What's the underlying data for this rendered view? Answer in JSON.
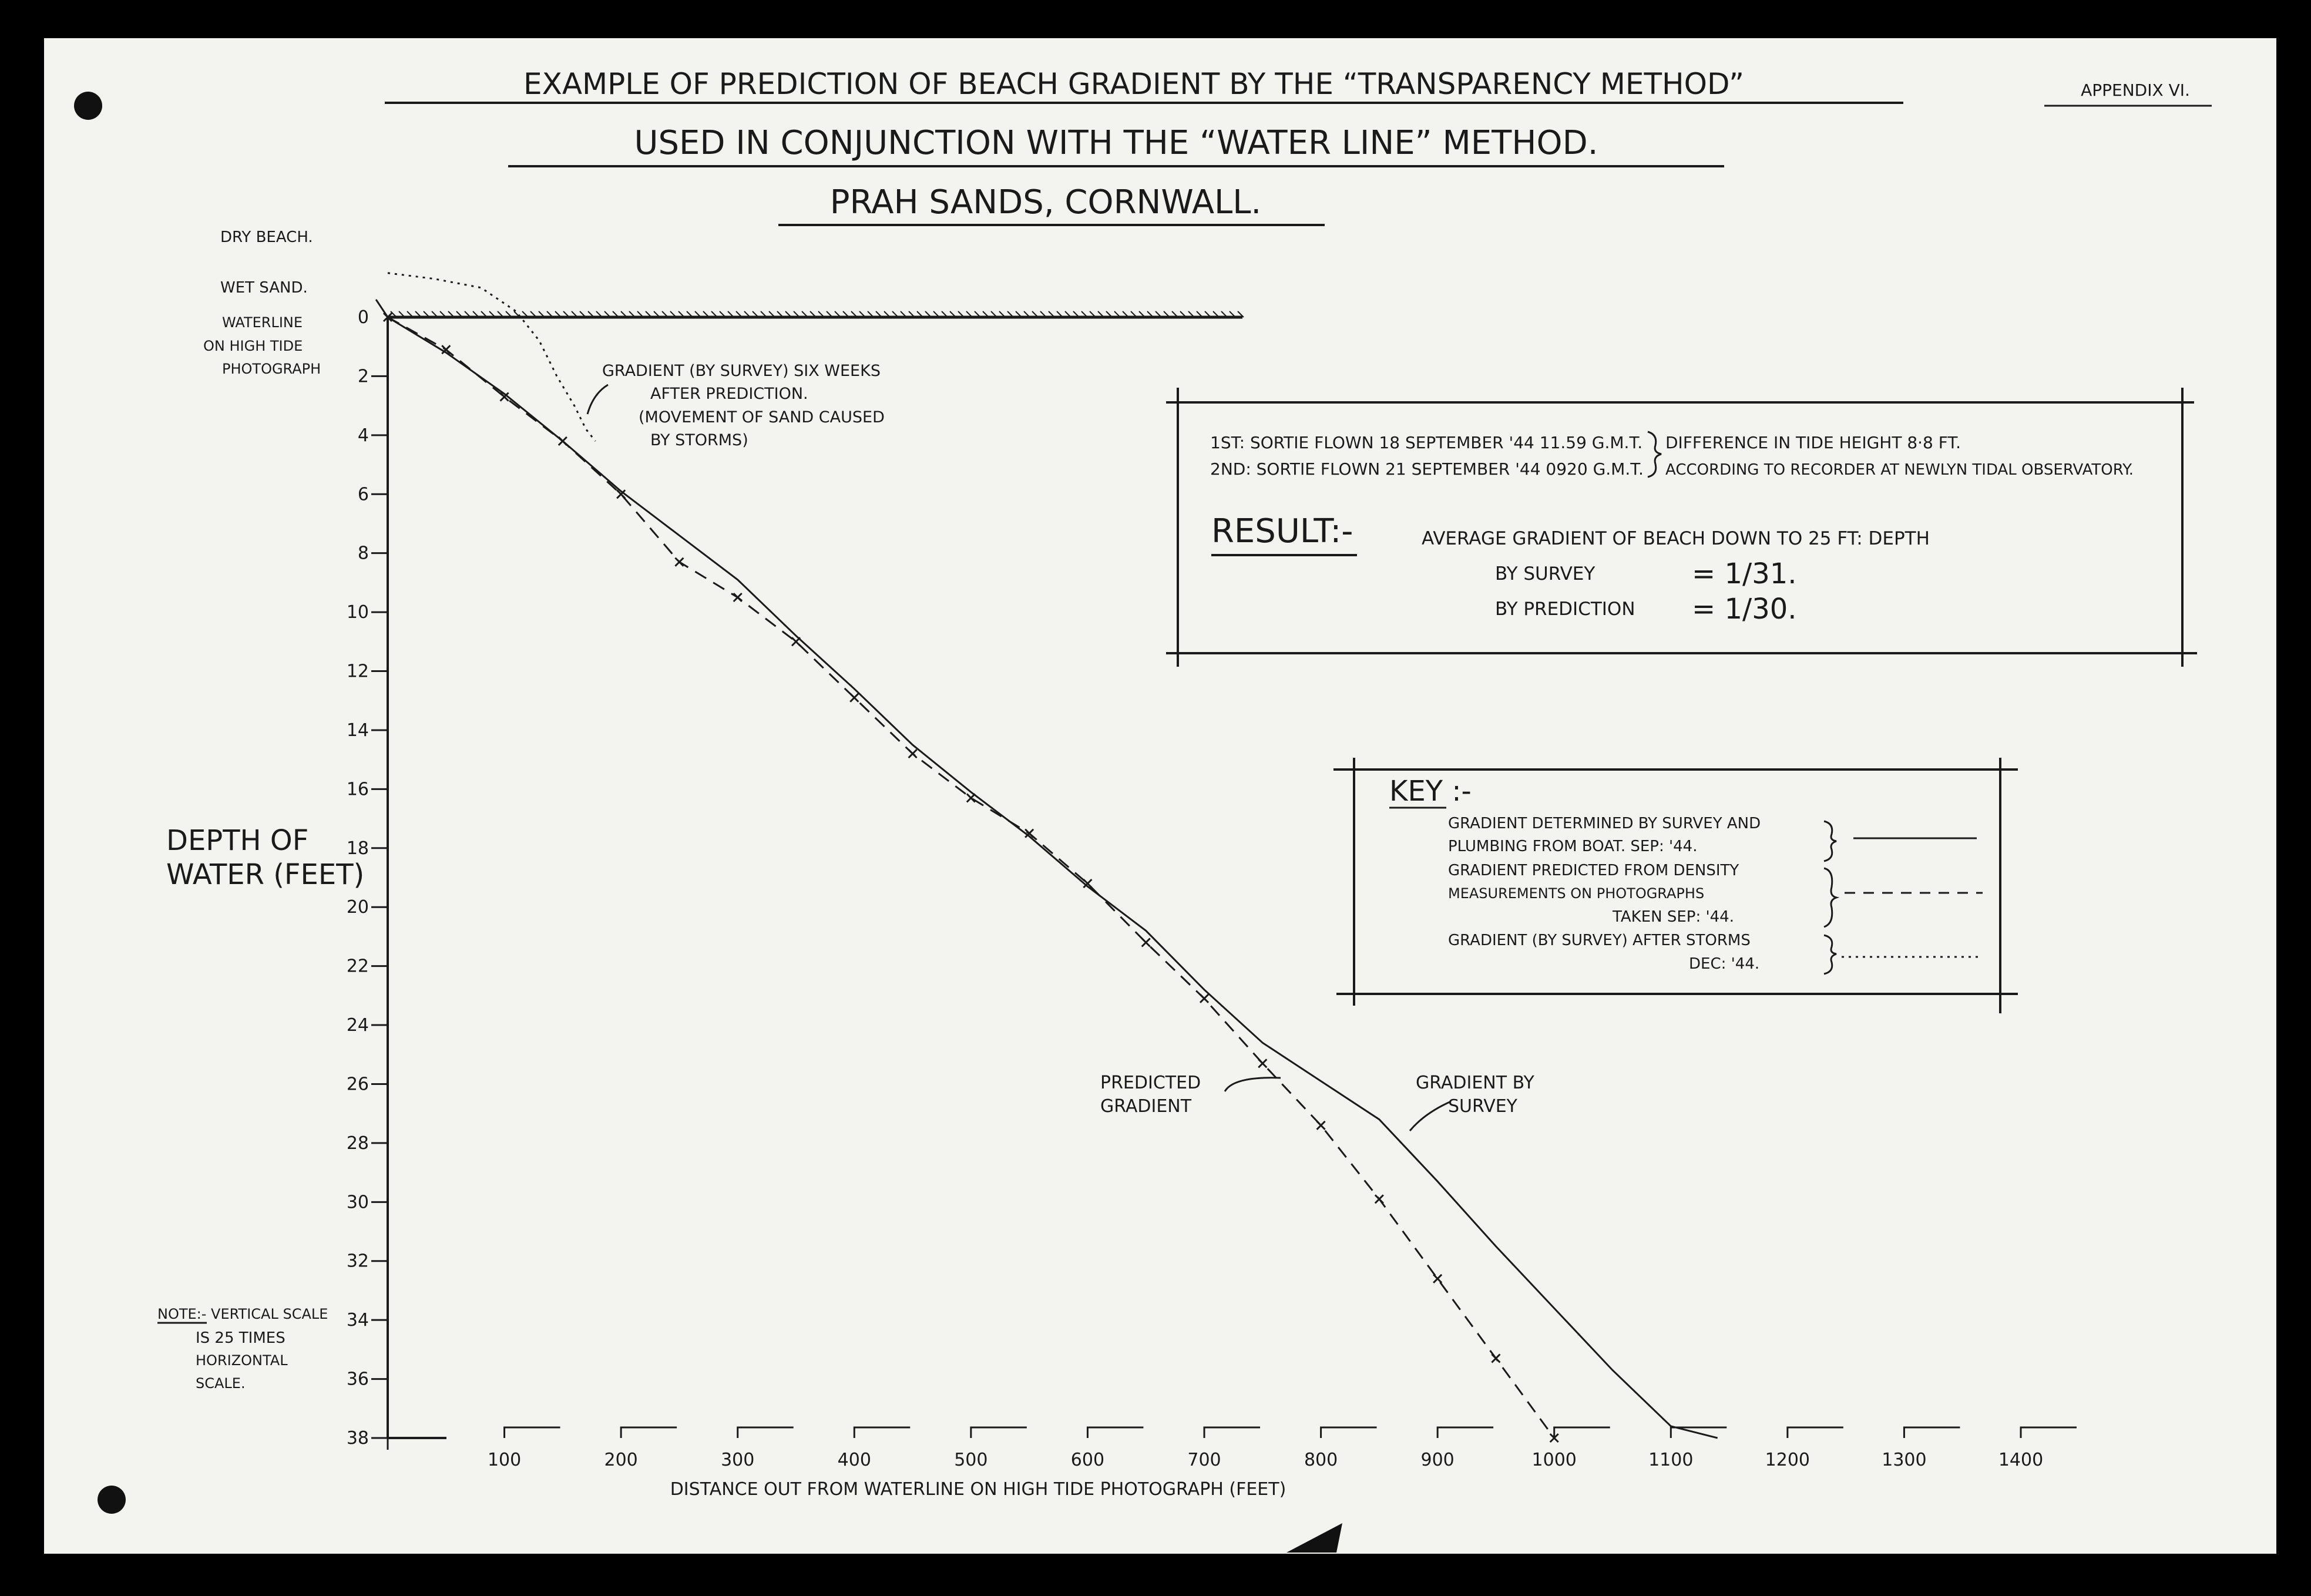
{
  "page": {
    "title_line1": "EXAMPLE OF PREDICTION OF BEACH GRADIENT BY THE “TRANSPARENCY METHOD”",
    "title_line2": "USED IN CONJUNCTION WITH THE “WATER LINE” METHOD.",
    "title_line3": "PRAH SANDS, CORNWALL.",
    "appendix": "APPENDIX VI."
  },
  "labels": {
    "dry_beach": "DRY BEACH.",
    "wet_sand": "WET SAND.",
    "waterline_1": "WATERLINE",
    "waterline_2": "ON HIGH TIDE",
    "waterline_3": "PHOTOGRAPH",
    "storm_note_1": "GRADIENT (BY SURVEY) SIX WEEKS",
    "storm_note_2": "AFTER PREDICTION.",
    "storm_note_3": "(MOVEMENT OF SAND CAUSED",
    "storm_note_4": "BY STORMS)",
    "predicted_1": "PREDICTED",
    "predicted_2": "GRADIENT",
    "survey_1": "GRADIENT BY",
    "survey_2": "SURVEY",
    "note_1": "NOTE:- VERTICAL SCALE",
    "note_2": "IS 25 TIMES",
    "note_3": "HORIZONTAL",
    "note_4": "SCALE."
  },
  "info_box": {
    "sortie1": "1ST: SORTIE FLOWN 18 SEPTEMBER '44 11.59 G.M.T.",
    "sortie2": "2ND: SORTIE FLOWN 21 SEPTEMBER '44 0920 G.M.T.",
    "tide1": "DIFFERENCE IN TIDE HEIGHT 8·8 FT.",
    "tide2": "ACCORDING TO RECORDER AT NEWLYN TIDAL OBSERVATORY.",
    "result_label": "RESULT:-",
    "result_text": "AVERAGE GRADIENT OF BEACH DOWN TO 25 FT: DEPTH",
    "by_survey": "BY SURVEY",
    "by_survey_value": "= 1/31.",
    "by_prediction": "BY PREDICTION",
    "by_prediction_value": "= 1/30."
  },
  "key_box": {
    "title": "KEY :-",
    "survey_1": "GRADIENT DETERMINED BY SURVEY AND",
    "survey_2": "PLUMBING FROM BOAT. SEP: '44.",
    "predicted_1": "GRADIENT PREDICTED FROM DENSITY",
    "predicted_2": "MEASUREMENTS ON PHOTOGRAPHS",
    "predicted_3": "TAKEN SEP: '44.",
    "storms_1": "GRADIENT (BY SURVEY) AFTER STORMS",
    "storms_2": "DEC: '44."
  },
  "chart_data": {
    "type": "line",
    "title": "EXAMPLE OF PREDICTION OF BEACH GRADIENT BY THE “TRANSPARENCY METHOD”",
    "xlabel": "DISTANCE OUT FROM WATERLINE ON HIGH TIDE PHOTOGRAPH (FEET)",
    "ylabel_1": "DEPTH OF",
    "ylabel_2": "WATER (FEET)",
    "xlim": [
      0,
      1400
    ],
    "ylim": [
      0,
      38
    ],
    "y_inverted": true,
    "x_ticks": [
      100,
      200,
      300,
      400,
      500,
      600,
      700,
      800,
      900,
      1000,
      1100,
      1200,
      1300,
      1400
    ],
    "y_ticks": [
      0,
      2,
      4,
      6,
      8,
      10,
      12,
      14,
      16,
      18,
      20,
      22,
      24,
      26,
      28,
      30,
      32,
      34,
      36,
      38
    ],
    "series": [
      {
        "name": "GRADIENT DETERMINED BY SURVEY AND PLUMBING FROM BOAT. SEP: '44.",
        "style": "solid",
        "x": [
          -10,
          0,
          50,
          100,
          150,
          200,
          250,
          300,
          350,
          400,
          450,
          500,
          550,
          600,
          650,
          700,
          750,
          800,
          850,
          900,
          950,
          1000,
          1050,
          1100,
          1140
        ],
        "y": [
          -0.6,
          0,
          1.2,
          2.6,
          4.2,
          5.9,
          7.4,
          8.9,
          10.8,
          12.6,
          14.5,
          16.1,
          17.6,
          19.3,
          20.8,
          22.8,
          24.6,
          25.9,
          27.2,
          29.3,
          31.5,
          33.6,
          35.7,
          37.6,
          38
        ]
      },
      {
        "name": "GRADIENT PREDICTED FROM DENSITY MEASUREMENTS ON PHOTOGRAPHS TAKEN SEP: '44.",
        "style": "dashed",
        "x": [
          0,
          50,
          100,
          150,
          200,
          250,
          300,
          350,
          400,
          450,
          500,
          550,
          600,
          650,
          700,
          750,
          800,
          850,
          900,
          950,
          1000
        ],
        "y": [
          0,
          1.1,
          2.7,
          4.2,
          6.0,
          8.3,
          9.5,
          11.0,
          12.9,
          14.8,
          16.3,
          17.5,
          19.2,
          21.2,
          23.1,
          25.3,
          27.4,
          29.9,
          32.6,
          35.3,
          38.0
        ]
      },
      {
        "name": "GRADIENT (BY SURVEY) AFTER STORMS DEC: '44.",
        "style": "dotted",
        "x": [
          0,
          40,
          80,
          110,
          130,
          145,
          160,
          170,
          178
        ],
        "y": [
          -1.5,
          -1.3,
          -1.0,
          -0.2,
          0.8,
          2.0,
          3.0,
          3.8,
          4.2
        ]
      }
    ],
    "grid": false,
    "legend": "right"
  }
}
